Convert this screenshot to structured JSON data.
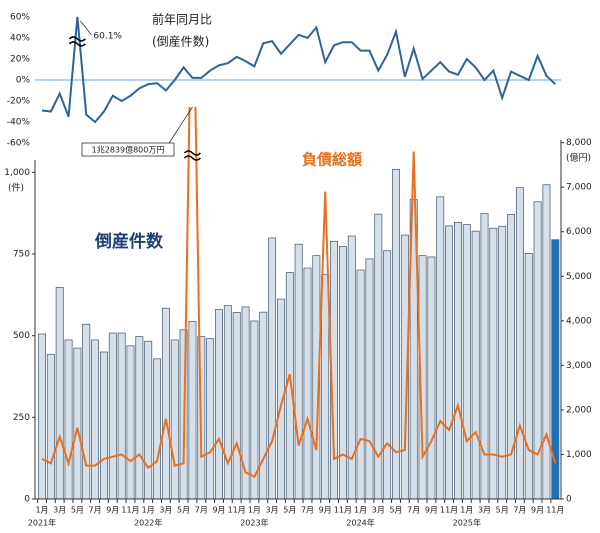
{
  "chart_data": [
    {
      "type": "line",
      "title": "前年同月比",
      "subtitle": "(倒産件数)",
      "color": "#2e6496",
      "values": [
        -29,
        -30,
        -13,
        -35,
        60.1,
        -33,
        -40,
        -30,
        -15,
        -20,
        -15,
        -8,
        -4,
        -3,
        -10,
        0,
        12,
        2,
        2,
        9,
        14,
        16,
        22,
        18,
        13,
        35,
        37,
        25,
        34,
        43,
        40,
        50,
        17,
        33,
        36,
        36,
        28,
        28,
        9,
        24,
        46,
        3,
        30,
        1,
        9,
        17,
        8,
        5,
        20,
        12,
        0,
        9,
        -17,
        8,
        4,
        0,
        23,
        4,
        -4
      ],
      "value_labels": [
        null,
        null,
        null,
        null,
        "60.1%",
        null,
        null,
        null,
        null,
        null,
        null,
        null,
        null,
        null,
        null,
        null,
        null,
        null,
        null,
        null,
        null,
        null,
        null,
        null,
        null,
        null,
        null,
        null,
        null,
        null,
        null,
        null,
        null,
        null,
        null,
        null,
        null,
        null,
        null,
        null,
        null,
        null,
        null,
        null,
        null,
        null,
        null,
        null,
        null,
        null,
        null,
        null,
        null,
        null,
        null,
        null,
        null,
        null,
        null
      ],
      "ylim": [
        -60,
        60
      ],
      "yticks": [
        {
          "value": 60,
          "label": "60%"
        },
        {
          "value": 40,
          "label": "40%"
        },
        {
          "value": 20,
          "label": "20%"
        },
        {
          "value": 0,
          "label": "0%"
        },
        {
          "value": -20,
          "label": "-20%"
        },
        {
          "value": -40,
          "label": "-40%"
        },
        {
          "value": -60,
          "label": "-60%"
        }
      ]
    },
    {
      "type": "bar",
      "categories": [
        "1月",
        null,
        "3月",
        null,
        "5月",
        null,
        "7月",
        null,
        "9月",
        null,
        "11月",
        null,
        "1月",
        null,
        "3月",
        null,
        "5月",
        null,
        "7月",
        null,
        "9月",
        null,
        "11月",
        null,
        "1月",
        null,
        "3月",
        null,
        "5月",
        null,
        "7月",
        null,
        "9月",
        null,
        "11月",
        null,
        "1月",
        null,
        "3月",
        null,
        "5月",
        null,
        "7月",
        null,
        "9月",
        null,
        "11月",
        null,
        "1月",
        null,
        "3月",
        null,
        "5月",
        null,
        "7月",
        null,
        "9月",
        null,
        "11月"
      ],
      "year_labels": [
        "2021年",
        "2022年",
        "2023年",
        "2024年",
        "2025年"
      ],
      "ylabel": "(件)",
      "y2label": "(億円)",
      "ylim": [
        0,
        1200
      ],
      "yticks": [
        0,
        250,
        500,
        750,
        {
          "value": 1000,
          "label": "1,000"
        }
      ],
      "y2lim": [
        0,
        8800
      ],
      "y2ticks": [
        0,
        {
          "value": 1000,
          "label": "1,000"
        },
        {
          "value": 2000,
          "label": "2,000"
        },
        {
          "value": 3000,
          "label": "3,000"
        },
        {
          "value": 4000,
          "label": "4,000"
        },
        {
          "value": 5000,
          "label": "5,000"
        },
        {
          "value": 6000,
          "label": "6,000"
        },
        {
          "value": 7000,
          "label": "7,000"
        },
        {
          "value": 8000,
          "label": "8,000"
        }
      ],
      "series": [
        {
          "name": "倒産件数",
          "color": "#d6e0ea",
          "edge_color": "#44546a",
          "highlight_color": "#1f6fb5",
          "values": [
            505,
            443,
            648,
            487,
            462,
            535,
            487,
            450,
            508,
            508,
            469,
            497,
            483,
            429,
            584,
            487,
            518,
            544,
            497,
            491,
            580,
            592,
            571,
            588,
            545,
            572,
            799,
            612,
            693,
            780,
            707,
            745,
            687,
            789,
            773,
            805,
            701,
            735,
            872,
            760,
            1009,
            808,
            917,
            745,
            741,
            925,
            836,
            847,
            840,
            820,
            874,
            829,
            835,
            871,
            953,
            752,
            910,
            962,
            794
          ]
        },
        {
          "name": "負債総額",
          "type": "line",
          "axis": "y2",
          "color": "#e8701f",
          "values": [
            900,
            800,
            1400,
            800,
            1600,
            750,
            750,
            900,
            950,
            1000,
            850,
            1000,
            700,
            850,
            1800,
            750,
            800,
            12839.08,
            950,
            1050,
            1350,
            800,
            1250,
            600,
            500,
            900,
            1300,
            2100,
            2800,
            1200,
            1800,
            1100,
            6900,
            900,
            1000,
            900,
            1350,
            1300,
            950,
            1250,
            1050,
            1100,
            7800,
            950,
            1300,
            1750,
            1550,
            2100,
            1300,
            1500,
            1000,
            1000,
            950,
            1000,
            1650,
            1100,
            1000,
            1450,
            800
          ],
          "value_labels": [
            null,
            null,
            null,
            null,
            null,
            null,
            null,
            null,
            null,
            null,
            null,
            null,
            null,
            null,
            null,
            null,
            null,
            "1兆2839億800万円",
            null,
            null,
            null,
            null,
            null,
            null,
            null,
            null,
            null,
            null,
            null,
            null,
            null,
            null,
            null,
            null,
            null,
            null,
            null,
            null,
            null,
            null,
            null,
            null,
            null,
            null,
            null,
            null,
            null,
            null,
            null,
            null,
            null,
            null,
            null,
            null,
            null,
            null,
            null,
            null,
            null
          ]
        }
      ]
    }
  ]
}
